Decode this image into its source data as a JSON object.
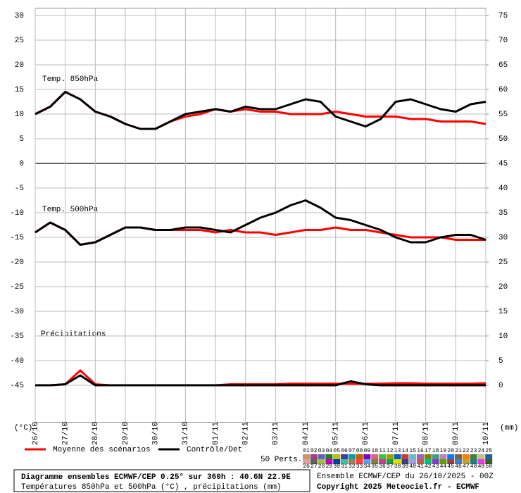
{
  "chart_data": {
    "type": "line",
    "categories": [
      "26/10",
      null,
      "27/10",
      null,
      "28/10",
      null,
      "29/10",
      null,
      "30/10",
      null,
      "31/10",
      null,
      "01/11",
      null,
      "02/11",
      null,
      "03/11",
      null,
      "04/11",
      null,
      "05/11",
      null,
      "06/11",
      null,
      "07/11",
      null,
      "08/11",
      null,
      "09/11",
      null,
      "10/11"
    ],
    "ylim": [
      -52.5,
      31.5
    ],
    "yticks": [
      30,
      25,
      20,
      15,
      10,
      5,
      0,
      -5,
      -10,
      -15,
      -20,
      -25,
      -30,
      -35,
      -40,
      -45
    ],
    "y2lim": [
      -7.5,
      76.5
    ],
    "y2ticks": [
      75,
      70,
      65,
      60,
      55,
      50,
      45,
      40,
      35,
      30,
      25,
      20,
      15,
      10,
      5,
      0
    ],
    "ylabel": "(°C)",
    "y2label": "(mm)",
    "grid": true,
    "panel_labels": [
      "Temp. 850hPa",
      "Temp. 500hPa",
      "Précipitations"
    ],
    "series": [
      {
        "name": "Moyenne des scénarios",
        "color": "#ff0000",
        "values": [
          10,
          11.5,
          14.5,
          13,
          10.5,
          9.5,
          8,
          7,
          7,
          8.5,
          9.5,
          10,
          11,
          10.5,
          11,
          10.5,
          10.5,
          10,
          10,
          10,
          10.5,
          10,
          9.5,
          9.5,
          9.5,
          9,
          9,
          8.5,
          8.5,
          8.5,
          8
        ]
      },
      {
        "name": "Contrôle/Det",
        "color": "#000000",
        "values": [
          10,
          11.5,
          14.5,
          13,
          10.5,
          9.5,
          8,
          7,
          7,
          8.5,
          10,
          10.5,
          11,
          10.5,
          11.5,
          11,
          11,
          12,
          13,
          12.5,
          9.5,
          8.5,
          7.5,
          9,
          12.5,
          13,
          12,
          11,
          10.5,
          12,
          12.5
        ]
      },
      {
        "color": "#ff0000",
        "values": [
          -14,
          -12,
          -13.5,
          -16.5,
          -16,
          -14.5,
          -13,
          -13,
          -13.5,
          -13.5,
          -13.5,
          -13.5,
          -14,
          -13.5,
          -14,
          -14,
          -14.5,
          -14,
          -13.5,
          -13.5,
          -13,
          -13.5,
          -13.5,
          -14,
          -14.5,
          -15,
          -15,
          -15,
          -15.5,
          -15.5,
          -15.5
        ]
      },
      {
        "color": "#000000",
        "values": [
          -14,
          -12,
          -13.5,
          -16.5,
          -16,
          -14.5,
          -13,
          -13,
          -13.5,
          -13.5,
          -13,
          -13,
          -13.5,
          -14,
          -12.5,
          -11,
          -10,
          -8.5,
          -7.5,
          -9,
          -11,
          -11.5,
          -12.5,
          -13.5,
          -15,
          -16,
          -16,
          -15,
          -14.5,
          -14.5,
          -15.5
        ]
      },
      {
        "color": "#ff0000",
        "axis": "y2",
        "values": [
          0,
          0,
          0.2,
          3,
          0.2,
          0,
          0,
          0,
          0,
          0,
          0,
          0,
          0,
          0.2,
          0.2,
          0.2,
          0.2,
          0.3,
          0.3,
          0.3,
          0.3,
          0.3,
          0.3,
          0.3,
          0.4,
          0.4,
          0.3,
          0.3,
          0.3,
          0.3,
          0.4
        ]
      },
      {
        "color": "#000000",
        "axis": "y2",
        "values": [
          0,
          0,
          0.2,
          2,
          0,
          0,
          0,
          0,
          0,
          0,
          0,
          0,
          0,
          0,
          0,
          0,
          0,
          0,
          0,
          0,
          0,
          0.8,
          0.2,
          0,
          0,
          0,
          0,
          0,
          0,
          0,
          0
        ]
      }
    ],
    "perturbations_label": "50 Perts.",
    "perturbations": [
      "01",
      "02",
      "03",
      "04",
      "05",
      "06",
      "07",
      "08",
      "09",
      "10",
      "11",
      "12",
      "13",
      "14",
      "15",
      "16",
      "17",
      "18",
      "19",
      "20",
      "21",
      "22",
      "23",
      "24",
      "25",
      "26",
      "27",
      "28",
      "29",
      "30",
      "31",
      "32",
      "33",
      "34",
      "35",
      "36",
      "37",
      "38",
      "39",
      "40",
      "41",
      "42",
      "43",
      "44",
      "45",
      "46",
      "47",
      "48",
      "49",
      "50"
    ],
    "perturbation_colors": [
      "#c89664",
      "#a04080",
      "#6060c0",
      "#208020",
      "#c0c000",
      "#4040a0",
      "#00a0a0",
      "#c06000",
      "#8000c0",
      "#e06080",
      "#40c040",
      "#a0a000",
      "#0060c0",
      "#c04040",
      "#60c0c0",
      "#a060c0",
      "#808000",
      "#40a080",
      "#c080c0",
      "#0080ff",
      "#806040",
      "#ff8000",
      "#408040",
      "#c0c080",
      "#2060a0",
      "#e0a0a0",
      "#606060",
      "#a0c040",
      "#c000c0",
      "#0040a0",
      "#40c0a0",
      "#a08060",
      "#ff4040",
      "#60a0e0",
      "#808040",
      "#c040a0",
      "#20a040",
      "#e0e000",
      "#404080",
      "#a0a0e0",
      "#c06040",
      "#00c080",
      "#8040c0",
      "#60a000",
      "#a04040",
      "#4080c0",
      "#c0a040",
      "#208080",
      "#e040e0",
      "#406020"
    ],
    "footer": {
      "title": "Diagramme ensembles ECMWF/CEP 0.25° sur 360h : 40.6N 22.9E",
      "subtitle": "Températures 850hPa et 500hPa (°C) , précipitations (mm)",
      "run": "Ensemble ECMWF/CEP du 26/10/2025 - 00Z",
      "copyright": "Copyright 2025 Meteociel.fr - ECMWF"
    }
  }
}
